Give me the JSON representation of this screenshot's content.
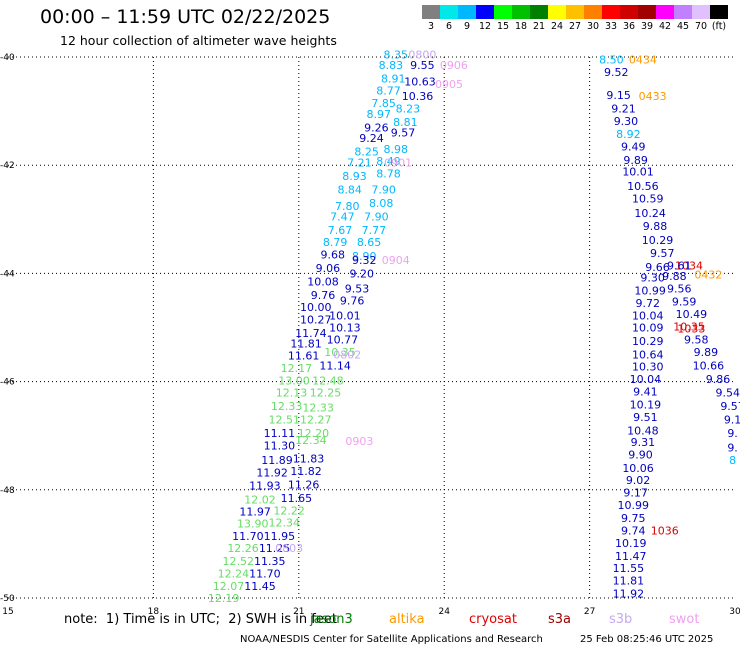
{
  "header": {
    "title": "00:00 – 11:59 UTC 02/22/2025",
    "subtitle": "12 hour collection of altimeter wave heights"
  },
  "colorbar": {
    "labels": [
      "3",
      "6",
      "9",
      "12",
      "15",
      "18",
      "21",
      "24",
      "27",
      "30",
      "33",
      "36",
      "39",
      "42",
      "45",
      "70",
      "(ft)"
    ],
    "colors": [
      "#808080",
      "#00e8e8",
      "#00b8ff",
      "#0000ff",
      "#00ff00",
      "#00c000",
      "#008000",
      "#ffff00",
      "#ffc000",
      "#ff8000",
      "#ff0000",
      "#d00000",
      "#a00000",
      "#ff00ff",
      "#c080ff",
      "#e0c0ff",
      "#000000"
    ]
  },
  "footer": {
    "note": "note:  1) Time is in UTC;  2) SWH is in feet",
    "legend": [
      {
        "name": "jason3",
        "color": "#008000"
      },
      {
        "name": "altika",
        "color": "#ff9900"
      },
      {
        "name": "cryosat",
        "color": "#e00000"
      },
      {
        "name": "s3a",
        "color": "#a00000"
      },
      {
        "name": "s3b",
        "color": "#c8a8f0"
      },
      {
        "name": "swot",
        "color": "#f0a0f0"
      }
    ],
    "credit": "NOAA/NESDIS Center for Satellite Applications and Research",
    "timestamp": "25 Feb 08:25:46 UTC 2025"
  },
  "chart_data": {
    "type": "scatter",
    "xlim": [
      15,
      30
    ],
    "ylim": [
      -50,
      -40
    ],
    "x_ticks": [
      "15",
      "18",
      "21",
      "24",
      "27",
      "30"
    ],
    "y_ticks": [
      "-40",
      "-42",
      "-44",
      "-46",
      "-48",
      "-50"
    ],
    "grid": true,
    "points": [
      {
        "x": 23.0,
        "y": -39.95,
        "label": "8.35",
        "color": "#00b8ff"
      },
      {
        "x": 23.55,
        "y": -39.95,
        "label": "0800",
        "color": "#c8a8f0"
      },
      {
        "x": 22.9,
        "y": -40.15,
        "label": "8.83",
        "color": "#00b8ff"
      },
      {
        "x": 23.55,
        "y": -40.15,
        "label": "9.55",
        "color": "#0000c0"
      },
      {
        "x": 24.2,
        "y": -40.15,
        "label": "0906",
        "color": "#f0a0f0"
      },
      {
        "x": 22.95,
        "y": -40.4,
        "label": "8.91",
        "color": "#00b8ff"
      },
      {
        "x": 23.5,
        "y": -40.45,
        "label": "10.63",
        "color": "#0000c0"
      },
      {
        "x": 24.1,
        "y": -40.5,
        "label": "0905",
        "color": "#f0a0f0"
      },
      {
        "x": 22.85,
        "y": -40.62,
        "label": "8.77",
        "color": "#00b8ff"
      },
      {
        "x": 23.45,
        "y": -40.72,
        "label": "10.36",
        "color": "#0000c0"
      },
      {
        "x": 22.75,
        "y": -40.85,
        "label": "7.85",
        "color": "#00b8ff"
      },
      {
        "x": 23.25,
        "y": -40.95,
        "label": "8.23",
        "color": "#00b8ff"
      },
      {
        "x": 22.65,
        "y": -41.05,
        "label": "8.97",
        "color": "#00b8ff"
      },
      {
        "x": 23.2,
        "y": -41.2,
        "label": "8.81",
        "color": "#00b8ff"
      },
      {
        "x": 22.6,
        "y": -41.3,
        "label": "9.26",
        "color": "#0000c0"
      },
      {
        "x": 23.15,
        "y": -41.4,
        "label": "9.57",
        "color": "#0000c0"
      },
      {
        "x": 22.5,
        "y": -41.5,
        "label": "9.24",
        "color": "#0000c0"
      },
      {
        "x": 23.0,
        "y": -41.7,
        "label": "8.98",
        "color": "#00b8ff"
      },
      {
        "x": 22.4,
        "y": -41.75,
        "label": "8.25",
        "color": "#00b8ff"
      },
      {
        "x": 22.85,
        "y": -41.92,
        "label": "8.49",
        "color": "#00b8ff"
      },
      {
        "x": 23.05,
        "y": -41.95,
        "label": "0901",
        "color": "#f0a0f0"
      },
      {
        "x": 22.25,
        "y": -41.95,
        "label": "7.21",
        "color": "#00b8ff"
      },
      {
        "x": 22.85,
        "y": -42.15,
        "label": "8.78",
        "color": "#00b8ff"
      },
      {
        "x": 22.15,
        "y": -42.2,
        "label": "8.93",
        "color": "#00b8ff"
      },
      {
        "x": 22.75,
        "y": -42.45,
        "label": "7.90",
        "color": "#00b8ff"
      },
      {
        "x": 22.05,
        "y": -42.45,
        "label": "8.84",
        "color": "#00b8ff"
      },
      {
        "x": 22.7,
        "y": -42.7,
        "label": "8.08",
        "color": "#00b8ff"
      },
      {
        "x": 22.0,
        "y": -42.75,
        "label": "7.80",
        "color": "#00b8ff"
      },
      {
        "x": 22.6,
        "y": -42.95,
        "label": "7.90",
        "color": "#00b8ff"
      },
      {
        "x": 21.9,
        "y": -42.95,
        "label": "7.47",
        "color": "#00b8ff"
      },
      {
        "x": 22.55,
        "y": -43.2,
        "label": "7.77",
        "color": "#00b8ff"
      },
      {
        "x": 21.85,
        "y": -43.2,
        "label": "7.67",
        "color": "#00b8ff"
      },
      {
        "x": 22.45,
        "y": -43.42,
        "label": "8.65",
        "color": "#00b8ff"
      },
      {
        "x": 21.75,
        "y": -43.42,
        "label": "8.79",
        "color": "#00b8ff"
      },
      {
        "x": 22.35,
        "y": -43.68,
        "label": "8.90",
        "color": "#00b8ff"
      },
      {
        "x": 21.7,
        "y": -43.65,
        "label": "9.68",
        "color": "#0000c0"
      },
      {
        "x": 22.35,
        "y": -43.75,
        "label": "9.32",
        "color": "#0000c0"
      },
      {
        "x": 23.0,
        "y": -43.75,
        "label": "0904",
        "color": "#f0a0f0"
      },
      {
        "x": 21.6,
        "y": -43.9,
        "label": "9.06",
        "color": "#0000c0"
      },
      {
        "x": 22.3,
        "y": -44.0,
        "label": "9.20",
        "color": "#0000c0"
      },
      {
        "x": 21.5,
        "y": -44.15,
        "label": "10.08",
        "color": "#0000c0"
      },
      {
        "x": 22.2,
        "y": -44.28,
        "label": "9.53",
        "color": "#0000c0"
      },
      {
        "x": 21.5,
        "y": -44.4,
        "label": "9.76",
        "color": "#0000c0"
      },
      {
        "x": 22.1,
        "y": -44.5,
        "label": "9.76",
        "color": "#0000c0"
      },
      {
        "x": 21.35,
        "y": -44.62,
        "label": "10.00",
        "color": "#0000c0"
      },
      {
        "x": 21.95,
        "y": -44.78,
        "label": "10.01",
        "color": "#0000c0"
      },
      {
        "x": 21.35,
        "y": -44.85,
        "label": "10.27",
        "color": "#0000c0"
      },
      {
        "x": 21.95,
        "y": -45.0,
        "label": "10.13",
        "color": "#0000c0"
      },
      {
        "x": 21.25,
        "y": -45.1,
        "label": "11.74",
        "color": "#0000c0"
      },
      {
        "x": 21.9,
        "y": -45.22,
        "label": "10.77",
        "color": "#0000c0"
      },
      {
        "x": 21.15,
        "y": -45.3,
        "label": "11.81",
        "color": "#0000c0"
      },
      {
        "x": 21.85,
        "y": -45.45,
        "label": "10.35",
        "color": "#66dd66"
      },
      {
        "x": 22.0,
        "y": -45.5,
        "label": "0802",
        "color": "#c8a8f0"
      },
      {
        "x": 21.1,
        "y": -45.52,
        "label": "11.61",
        "color": "#0000c0"
      },
      {
        "x": 21.75,
        "y": -45.7,
        "label": "11.14",
        "color": "#0000c0"
      },
      {
        "x": 20.95,
        "y": -45.75,
        "label": "12.17",
        "color": "#66dd66"
      },
      {
        "x": 20.9,
        "y": -45.98,
        "label": "13.00",
        "color": "#66dd66"
      },
      {
        "x": 21.6,
        "y": -45.98,
        "label": "12.48",
        "color": "#66dd66"
      },
      {
        "x": 20.85,
        "y": -46.2,
        "label": "12.13",
        "color": "#66dd66"
      },
      {
        "x": 21.55,
        "y": -46.2,
        "label": "12.25",
        "color": "#66dd66"
      },
      {
        "x": 20.75,
        "y": -46.45,
        "label": "12.33",
        "color": "#66dd66"
      },
      {
        "x": 21.4,
        "y": -46.48,
        "label": "12.33",
        "color": "#66dd66"
      },
      {
        "x": 20.7,
        "y": -46.7,
        "label": "12.51",
        "color": "#66dd66"
      },
      {
        "x": 21.35,
        "y": -46.7,
        "label": "12.27",
        "color": "#66dd66"
      },
      {
        "x": 20.6,
        "y": -46.95,
        "label": "11.11",
        "color": "#0000c0"
      },
      {
        "x": 21.3,
        "y": -46.95,
        "label": "12.20",
        "color": "#66dd66"
      },
      {
        "x": 21.25,
        "y": -47.08,
        "label": "12.34",
        "color": "#66dd66"
      },
      {
        "x": 22.25,
        "y": -47.1,
        "label": "0903",
        "color": "#f0a0f0"
      },
      {
        "x": 20.6,
        "y": -47.18,
        "label": "11.30",
        "color": "#0000c0"
      },
      {
        "x": 21.2,
        "y": -47.42,
        "label": "11.83",
        "color": "#0000c0"
      },
      {
        "x": 20.55,
        "y": -47.45,
        "label": "11.89",
        "color": "#0000c0"
      },
      {
        "x": 21.15,
        "y": -47.65,
        "label": "11.82",
        "color": "#0000c0"
      },
      {
        "x": 20.45,
        "y": -47.68,
        "label": "11.92",
        "color": "#0000c0"
      },
      {
        "x": 21.1,
        "y": -47.9,
        "label": "11.26",
        "color": "#0000c0"
      },
      {
        "x": 20.3,
        "y": -47.92,
        "label": "11.93",
        "color": "#0000c0"
      },
      {
        "x": 20.95,
        "y": -48.15,
        "label": "11.65",
        "color": "#0000c0"
      },
      {
        "x": 20.2,
        "y": -48.18,
        "label": "12.02",
        "color": "#66dd66"
      },
      {
        "x": 20.8,
        "y": -48.38,
        "label": "12.22",
        "color": "#66dd66"
      },
      {
        "x": 20.1,
        "y": -48.4,
        "label": "11.97",
        "color": "#0000c0"
      },
      {
        "x": 20.7,
        "y": -48.6,
        "label": "12.34",
        "color": "#66dd66"
      },
      {
        "x": 20.05,
        "y": -48.62,
        "label": "13.90",
        "color": "#66dd66"
      },
      {
        "x": 20.6,
        "y": -48.85,
        "label": "11.95",
        "color": "#0000c0"
      },
      {
        "x": 19.95,
        "y": -48.85,
        "label": "11.70",
        "color": "#0000c0"
      },
      {
        "x": 20.5,
        "y": -49.08,
        "label": "11.25",
        "color": "#0000c0"
      },
      {
        "x": 20.8,
        "y": -49.08,
        "label": "0803",
        "color": "#c8a8f0"
      },
      {
        "x": 19.85,
        "y": -49.08,
        "label": "12.26",
        "color": "#66dd66"
      },
      {
        "x": 20.4,
        "y": -49.32,
        "label": "11.35",
        "color": "#0000c0"
      },
      {
        "x": 19.75,
        "y": -49.32,
        "label": "12.52",
        "color": "#66dd66"
      },
      {
        "x": 20.3,
        "y": -49.55,
        "label": "11.70",
        "color": "#0000c0"
      },
      {
        "x": 19.65,
        "y": -49.55,
        "label": "12.24",
        "color": "#66dd66"
      },
      {
        "x": 20.2,
        "y": -49.78,
        "label": "11.45",
        "color": "#0000c0"
      },
      {
        "x": 19.55,
        "y": -49.78,
        "label": "12.07",
        "color": "#66dd66"
      },
      {
        "x": 19.45,
        "y": -50.0,
        "label": "12.19",
        "color": "#66dd66"
      },
      {
        "x": 27.45,
        "y": -40.05,
        "label": "8.50",
        "color": "#00b8ff"
      },
      {
        "x": 28.1,
        "y": -40.05,
        "label": "0434",
        "color": "#ff9900"
      },
      {
        "x": 27.55,
        "y": -40.28,
        "label": "9.52",
        "color": "#0000c0"
      },
      {
        "x": 27.6,
        "y": -40.7,
        "label": "9.15",
        "color": "#0000c0"
      },
      {
        "x": 28.3,
        "y": -40.72,
        "label": "0433",
        "color": "#ff9900"
      },
      {
        "x": 27.7,
        "y": -40.95,
        "label": "9.21",
        "color": "#0000c0"
      },
      {
        "x": 27.75,
        "y": -41.18,
        "label": "9.30",
        "color": "#0000c0"
      },
      {
        "x": 27.8,
        "y": -41.42,
        "label": "8.92",
        "color": "#00b8ff"
      },
      {
        "x": 27.9,
        "y": -41.65,
        "label": "9.49",
        "color": "#0000c0"
      },
      {
        "x": 27.95,
        "y": -41.9,
        "label": "9.89",
        "color": "#0000c0"
      },
      {
        "x": 28.0,
        "y": -42.12,
        "label": "10.01",
        "color": "#0000c0"
      },
      {
        "x": 28.1,
        "y": -42.38,
        "label": "10.56",
        "color": "#0000c0"
      },
      {
        "x": 28.2,
        "y": -42.62,
        "label": "10.59",
        "color": "#0000c0"
      },
      {
        "x": 28.25,
        "y": -42.88,
        "label": "10.24",
        "color": "#0000c0"
      },
      {
        "x": 28.35,
        "y": -43.12,
        "label": "9.88",
        "color": "#0000c0"
      },
      {
        "x": 28.4,
        "y": -43.38,
        "label": "10.29",
        "color": "#0000c0"
      },
      {
        "x": 28.5,
        "y": -43.62,
        "label": "9.57",
        "color": "#0000c0"
      },
      {
        "x": 29.05,
        "y": -43.85,
        "label": "1034",
        "color": "#e00000"
      },
      {
        "x": 28.4,
        "y": -43.88,
        "label": "9.66",
        "color": "#0000c0"
      },
      {
        "x": 28.85,
        "y": -43.85,
        "label": "9.61",
        "color": "#0000c0"
      },
      {
        "x": 28.3,
        "y": -44.08,
        "label": "9.30",
        "color": "#0000c0"
      },
      {
        "x": 28.75,
        "y": -44.05,
        "label": "9.88",
        "color": "#0000c0"
      },
      {
        "x": 29.45,
        "y": -44.02,
        "label": "0432",
        "color": "#ff9900"
      },
      {
        "x": 28.25,
        "y": -44.32,
        "label": "10.99",
        "color": "#0000c0"
      },
      {
        "x": 28.85,
        "y": -44.28,
        "label": "9.56",
        "color": "#0000c0"
      },
      {
        "x": 28.2,
        "y": -44.55,
        "label": "9.72",
        "color": "#0000c0"
      },
      {
        "x": 28.95,
        "y": -44.52,
        "label": "9.59",
        "color": "#0000c0"
      },
      {
        "x": 28.2,
        "y": -44.78,
        "label": "10.04",
        "color": "#0000c0"
      },
      {
        "x": 29.1,
        "y": -44.75,
        "label": "10.49",
        "color": "#0000c0"
      },
      {
        "x": 28.2,
        "y": -45.0,
        "label": "10.09",
        "color": "#0000c0"
      },
      {
        "x": 29.05,
        "y": -44.98,
        "label": "10.35",
        "color": "#e00000"
      },
      {
        "x": 29.1,
        "y": -45.02,
        "label": "1033",
        "color": "#e00000"
      },
      {
        "x": 28.2,
        "y": -45.25,
        "label": "10.29",
        "color": "#0000c0"
      },
      {
        "x": 29.2,
        "y": -45.22,
        "label": "9.58",
        "color": "#0000c0"
      },
      {
        "x": 28.2,
        "y": -45.5,
        "label": "10.64",
        "color": "#0000c0"
      },
      {
        "x": 29.4,
        "y": -45.45,
        "label": "9.89",
        "color": "#0000c0"
      },
      {
        "x": 28.2,
        "y": -45.72,
        "label": "10.30",
        "color": "#0000c0"
      },
      {
        "x": 29.45,
        "y": -45.7,
        "label": "10.66",
        "color": "#0000c0"
      },
      {
        "x": 28.15,
        "y": -45.95,
        "label": "10.04",
        "color": "#0000c0"
      },
      {
        "x": 29.65,
        "y": -45.95,
        "label": "9.86",
        "color": "#0000c0"
      },
      {
        "x": 28.15,
        "y": -46.18,
        "label": "9.41",
        "color": "#0000c0"
      },
      {
        "x": 29.85,
        "y": -46.2,
        "label": "9.54",
        "color": "#0000c0"
      },
      {
        "x": 28.15,
        "y": -46.42,
        "label": "10.19",
        "color": "#0000c0"
      },
      {
        "x": 29.95,
        "y": -46.45,
        "label": "9.57",
        "color": "#0000c0"
      },
      {
        "x": 28.15,
        "y": -46.65,
        "label": "9.51",
        "color": "#0000c0"
      },
      {
        "x": 29.95,
        "y": -46.7,
        "label": "9.1",
        "color": "#0000c0"
      },
      {
        "x": 28.1,
        "y": -46.9,
        "label": "10.48",
        "color": "#0000c0"
      },
      {
        "x": 29.95,
        "y": -46.95,
        "label": "9.",
        "color": "#0000c0"
      },
      {
        "x": 28.1,
        "y": -47.12,
        "label": "9.31",
        "color": "#0000c0"
      },
      {
        "x": 29.95,
        "y": -47.22,
        "label": "9.",
        "color": "#0000c0"
      },
      {
        "x": 28.05,
        "y": -47.35,
        "label": "9.90",
        "color": "#0000c0"
      },
      {
        "x": 29.95,
        "y": -47.45,
        "label": "8",
        "color": "#00b8ff"
      },
      {
        "x": 28.0,
        "y": -47.6,
        "label": "10.06",
        "color": "#0000c0"
      },
      {
        "x": 28.0,
        "y": -47.82,
        "label": "9.02",
        "color": "#0000c0"
      },
      {
        "x": 27.95,
        "y": -48.05,
        "label": "9.17",
        "color": "#0000c0"
      },
      {
        "x": 27.9,
        "y": -48.28,
        "label": "10.99",
        "color": "#0000c0"
      },
      {
        "x": 27.9,
        "y": -48.52,
        "label": "9.75",
        "color": "#0000c0"
      },
      {
        "x": 27.9,
        "y": -48.75,
        "label": "9.74",
        "color": "#0000c0"
      },
      {
        "x": 28.55,
        "y": -48.75,
        "label": "1036",
        "color": "#e00000"
      },
      {
        "x": 27.85,
        "y": -48.98,
        "label": "10.19",
        "color": "#0000c0"
      },
      {
        "x": 27.85,
        "y": -49.22,
        "label": "11.47",
        "color": "#0000c0"
      },
      {
        "x": 27.8,
        "y": -49.45,
        "label": "11.55",
        "color": "#0000c0"
      },
      {
        "x": 27.8,
        "y": -49.68,
        "label": "11.81",
        "color": "#0000c0"
      },
      {
        "x": 27.8,
        "y": -49.92,
        "label": "11.92",
        "color": "#0000c0"
      }
    ]
  }
}
